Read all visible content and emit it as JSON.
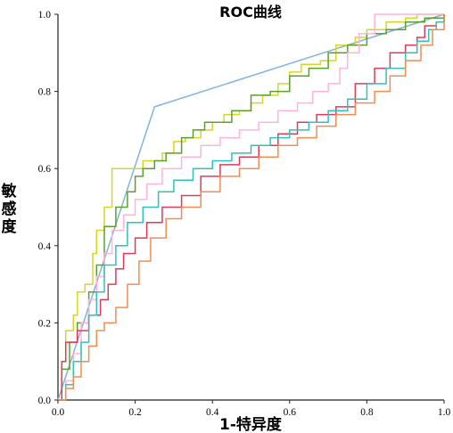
{
  "chart_data": {
    "type": "line",
    "title": "ROC曲线",
    "xlabel": "1-特异度",
    "ylabel": "敏感度",
    "xlim": [
      0,
      1
    ],
    "ylim": [
      0,
      1
    ],
    "x_ticks": [
      "0.0",
      "0.2",
      "0.4",
      "0.6",
      "0.8",
      "1.0"
    ],
    "y_ticks": [
      "0.0",
      "0.2",
      "0.4",
      "0.6",
      "0.8",
      "1.0"
    ],
    "grid": false,
    "series": [
      {
        "color": "#7fb2e5",
        "points": [
          [
            0,
            0
          ],
          [
            0.25,
            0.76
          ],
          [
            1,
            1
          ]
        ]
      },
      {
        "color": "#d6d624",
        "points": [
          [
            0,
            0
          ],
          [
            0.01,
            0.1
          ],
          [
            0.02,
            0.18
          ],
          [
            0.04,
            0.22
          ],
          [
            0.05,
            0.28
          ],
          [
            0.07,
            0.3
          ],
          [
            0.09,
            0.38
          ],
          [
            0.1,
            0.44
          ],
          [
            0.12,
            0.5
          ],
          [
            0.14,
            0.6
          ],
          [
            0.2,
            0.6
          ],
          [
            0.22,
            0.62
          ],
          [
            0.27,
            0.64
          ],
          [
            0.3,
            0.67
          ],
          [
            0.33,
            0.68
          ],
          [
            0.37,
            0.7
          ],
          [
            0.4,
            0.72
          ],
          [
            0.43,
            0.74
          ],
          [
            0.47,
            0.75
          ],
          [
            0.5,
            0.77
          ],
          [
            0.53,
            0.79
          ],
          [
            0.57,
            0.82
          ],
          [
            0.6,
            0.85
          ],
          [
            0.63,
            0.87
          ],
          [
            0.68,
            0.88
          ],
          [
            0.72,
            0.92
          ],
          [
            0.77,
            0.94
          ],
          [
            0.8,
            0.96
          ],
          [
            0.85,
            0.98
          ],
          [
            0.9,
            0.99
          ],
          [
            0.93,
            1
          ],
          [
            1,
            1
          ]
        ]
      },
      {
        "color": "#5aa02c",
        "points": [
          [
            0,
            0
          ],
          [
            0.01,
            0.08
          ],
          [
            0.03,
            0.15
          ],
          [
            0.05,
            0.2
          ],
          [
            0.08,
            0.28
          ],
          [
            0.1,
            0.35
          ],
          [
            0.12,
            0.45
          ],
          [
            0.15,
            0.5
          ],
          [
            0.18,
            0.54
          ],
          [
            0.2,
            0.58
          ],
          [
            0.22,
            0.6
          ],
          [
            0.25,
            0.62
          ],
          [
            0.28,
            0.64
          ],
          [
            0.32,
            0.68
          ],
          [
            0.35,
            0.7
          ],
          [
            0.38,
            0.72
          ],
          [
            0.42,
            0.72
          ],
          [
            0.45,
            0.75
          ],
          [
            0.5,
            0.79
          ],
          [
            0.55,
            0.8
          ],
          [
            0.6,
            0.84
          ],
          [
            0.65,
            0.86
          ],
          [
            0.7,
            0.9
          ],
          [
            0.75,
            0.92
          ],
          [
            0.8,
            0.95
          ],
          [
            0.85,
            0.96
          ],
          [
            0.9,
            0.98
          ],
          [
            0.95,
            0.99
          ],
          [
            1,
            1
          ]
        ]
      },
      {
        "color": "#ffb3d9",
        "points": [
          [
            0,
            0
          ],
          [
            0.02,
            0.05
          ],
          [
            0.04,
            0.12
          ],
          [
            0.06,
            0.2
          ],
          [
            0.08,
            0.26
          ],
          [
            0.1,
            0.32
          ],
          [
            0.12,
            0.38
          ],
          [
            0.14,
            0.44
          ],
          [
            0.17,
            0.48
          ],
          [
            0.2,
            0.52
          ],
          [
            0.23,
            0.56
          ],
          [
            0.27,
            0.6
          ],
          [
            0.32,
            0.63
          ],
          [
            0.37,
            0.66
          ],
          [
            0.42,
            0.68
          ],
          [
            0.47,
            0.7
          ],
          [
            0.52,
            0.72
          ],
          [
            0.57,
            0.75
          ],
          [
            0.62,
            0.77
          ],
          [
            0.66,
            0.8
          ],
          [
            0.7,
            0.82
          ],
          [
            0.73,
            0.86
          ],
          [
            0.75,
            0.9
          ],
          [
            0.78,
            0.95
          ],
          [
            0.82,
            1
          ],
          [
            1,
            1
          ]
        ]
      },
      {
        "color": "#e03a57",
        "points": [
          [
            0,
            0
          ],
          [
            0.01,
            0.1
          ],
          [
            0.02,
            0.15
          ],
          [
            0.05,
            0.18
          ],
          [
            0.08,
            0.22
          ],
          [
            0.11,
            0.26
          ],
          [
            0.13,
            0.3
          ],
          [
            0.15,
            0.34
          ],
          [
            0.17,
            0.38
          ],
          [
            0.2,
            0.42
          ],
          [
            0.23,
            0.46
          ],
          [
            0.27,
            0.5
          ],
          [
            0.32,
            0.53
          ],
          [
            0.37,
            0.58
          ],
          [
            0.42,
            0.61
          ],
          [
            0.47,
            0.63
          ],
          [
            0.52,
            0.66
          ],
          [
            0.57,
            0.69
          ],
          [
            0.62,
            0.72
          ],
          [
            0.67,
            0.74
          ],
          [
            0.72,
            0.76
          ],
          [
            0.77,
            0.82
          ],
          [
            0.82,
            0.86
          ],
          [
            0.86,
            0.9
          ],
          [
            0.9,
            0.92
          ],
          [
            0.93,
            0.94
          ],
          [
            0.95,
            0.97
          ],
          [
            0.98,
            0.98
          ],
          [
            1,
            1
          ]
        ]
      },
      {
        "color": "#2ec2ba",
        "points": [
          [
            0,
            0
          ],
          [
            0.02,
            0.04
          ],
          [
            0.04,
            0.1
          ],
          [
            0.06,
            0.15
          ],
          [
            0.08,
            0.22
          ],
          [
            0.1,
            0.28
          ],
          [
            0.12,
            0.35
          ],
          [
            0.15,
            0.4
          ],
          [
            0.18,
            0.46
          ],
          [
            0.22,
            0.5
          ],
          [
            0.26,
            0.54
          ],
          [
            0.3,
            0.57
          ],
          [
            0.35,
            0.6
          ],
          [
            0.4,
            0.62
          ],
          [
            0.45,
            0.64
          ],
          [
            0.5,
            0.66
          ],
          [
            0.55,
            0.68
          ],
          [
            0.6,
            0.7
          ],
          [
            0.65,
            0.72
          ],
          [
            0.7,
            0.75
          ],
          [
            0.75,
            0.78
          ],
          [
            0.8,
            0.82
          ],
          [
            0.85,
            0.86
          ],
          [
            0.9,
            0.9
          ],
          [
            0.93,
            0.93
          ],
          [
            0.96,
            0.96
          ],
          [
            0.98,
            0.98
          ],
          [
            1,
            1
          ]
        ]
      },
      {
        "color": "#f28c50",
        "points": [
          [
            0,
            0
          ],
          [
            0.02,
            0.03
          ],
          [
            0.04,
            0.06
          ],
          [
            0.06,
            0.1
          ],
          [
            0.08,
            0.14
          ],
          [
            0.1,
            0.18
          ],
          [
            0.12,
            0.2
          ],
          [
            0.15,
            0.24
          ],
          [
            0.18,
            0.3
          ],
          [
            0.21,
            0.36
          ],
          [
            0.24,
            0.42
          ],
          [
            0.28,
            0.47
          ],
          [
            0.32,
            0.5
          ],
          [
            0.37,
            0.54
          ],
          [
            0.42,
            0.58
          ],
          [
            0.47,
            0.6
          ],
          [
            0.52,
            0.63
          ],
          [
            0.57,
            0.66
          ],
          [
            0.62,
            0.68
          ],
          [
            0.67,
            0.71
          ],
          [
            0.72,
            0.74
          ],
          [
            0.77,
            0.77
          ],
          [
            0.82,
            0.8
          ],
          [
            0.86,
            0.84
          ],
          [
            0.9,
            0.88
          ],
          [
            0.94,
            0.92
          ],
          [
            0.97,
            0.96
          ],
          [
            1,
            1
          ]
        ]
      }
    ]
  }
}
